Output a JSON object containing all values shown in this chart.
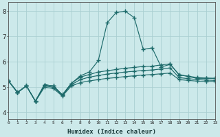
{
  "xlabel": "Humidex (Indice chaleur)",
  "bg_color": "#cce9ea",
  "grid_color": "#aacfd1",
  "line_color": "#1e6b6b",
  "x_ticks": [
    0,
    1,
    2,
    3,
    4,
    5,
    6,
    7,
    8,
    9,
    10,
    11,
    12,
    13,
    14,
    15,
    16,
    17,
    18,
    19,
    20,
    21,
    22,
    23
  ],
  "y_ticks": [
    4,
    5,
    6,
    7,
    8
  ],
  "xlim": [
    0,
    23
  ],
  "ylim": [
    3.75,
    8.35
  ],
  "series": {
    "line1": [
      5.25,
      4.8,
      5.05,
      4.45,
      5.1,
      5.05,
      4.7,
      5.15,
      5.45,
      5.6,
      6.05,
      7.55,
      7.95,
      8.0,
      7.75,
      6.5,
      6.55,
      5.8,
      5.9,
      5.5,
      5.42,
      5.35,
      5.35,
      5.35
    ],
    "line2": [
      5.25,
      4.8,
      5.05,
      4.45,
      5.1,
      5.05,
      4.7,
      5.15,
      5.4,
      5.5,
      5.6,
      5.65,
      5.7,
      5.75,
      5.78,
      5.82,
      5.83,
      5.88,
      5.92,
      5.48,
      5.44,
      5.38,
      5.36,
      5.35
    ],
    "line3": [
      5.25,
      4.8,
      5.05,
      4.45,
      5.05,
      5.0,
      4.68,
      5.1,
      5.3,
      5.4,
      5.46,
      5.52,
      5.56,
      5.6,
      5.63,
      5.66,
      5.68,
      5.72,
      5.76,
      5.38,
      5.34,
      5.3,
      5.28,
      5.27
    ],
    "line4": [
      5.25,
      4.78,
      5.05,
      4.44,
      5.0,
      4.95,
      4.65,
      5.05,
      5.18,
      5.25,
      5.3,
      5.35,
      5.38,
      5.42,
      5.45,
      5.48,
      5.5,
      5.53,
      5.56,
      5.3,
      5.27,
      5.24,
      5.22,
      5.22
    ]
  },
  "marker": "+",
  "markersize": 4,
  "linewidth": 0.85
}
